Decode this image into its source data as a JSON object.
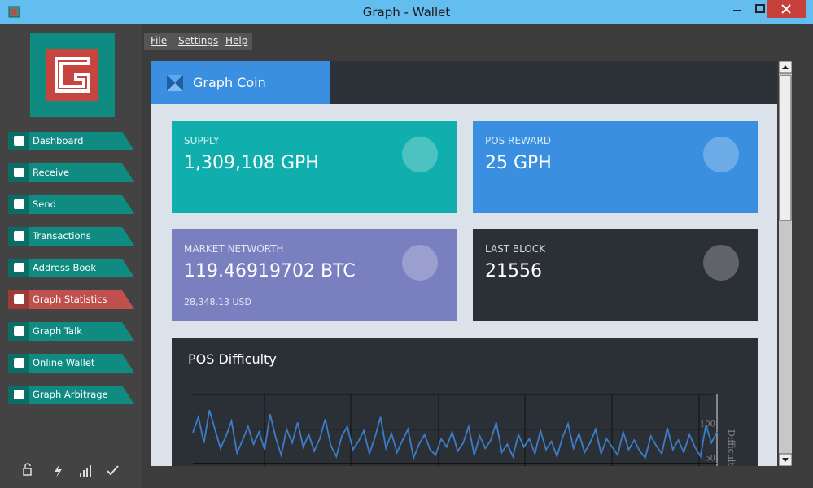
{
  "window": {
    "title": "Graph - Wallet"
  },
  "menu": [
    "File",
    "Settings",
    "Help"
  ],
  "nav": [
    "Dashboard",
    "Receive",
    "Send",
    "Transactions",
    "Address Book",
    "Graph Statistics",
    "Graph Talk",
    "Online Wallet",
    "Graph Arbitrage"
  ],
  "tab": "Graph Coin",
  "cards": [
    {
      "label": "SUPPLY",
      "value": "1,309,108 GPH"
    },
    {
      "label": "POS REWARD",
      "value": "25 GPH"
    },
    {
      "label": "MARKET NETWORTH",
      "value": "119.46919702 BTC",
      "sub": "28,348.13 USD"
    },
    {
      "label": "LAST BLOCK",
      "value": "21556"
    }
  ],
  "difficulty_chart": {
    "type": "line",
    "title": "POS Difficulty",
    "y_label": "Difficulty",
    "color": "#3d7cc6",
    "ylim": [
      46,
      151
    ],
    "yticks": [
      50,
      100
    ],
    "grid": true,
    "values": [
      95,
      118,
      80,
      128,
      100,
      72,
      90,
      112,
      65,
      84,
      104,
      78,
      96,
      70,
      122,
      88,
      62,
      100,
      80,
      110,
      74,
      92,
      68,
      86,
      115,
      76,
      60,
      90,
      104,
      70,
      82,
      98,
      64,
      88,
      118,
      72,
      94,
      66,
      84,
      100,
      58,
      78,
      92,
      70,
      62,
      86,
      74,
      96,
      68,
      80,
      104,
      62,
      90,
      72,
      84,
      110,
      66,
      78,
      60,
      92,
      74,
      86,
      64,
      98,
      70,
      82,
      60,
      88,
      108,
      72,
      94,
      66,
      80,
      100,
      64,
      86,
      74,
      62,
      96,
      70,
      84,
      68,
      58,
      90,
      76,
      64,
      102,
      70,
      84,
      66,
      92,
      74,
      60,
      106,
      80,
      96
    ]
  }
}
